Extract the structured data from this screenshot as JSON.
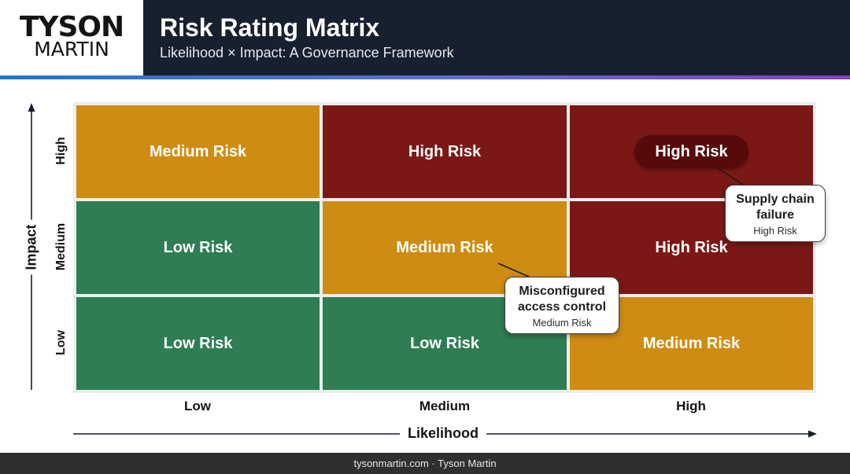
{
  "header": {
    "logo_line1": "TYSON",
    "logo_line2": "MARTIN",
    "title": "Risk Rating Matrix",
    "subtitle": "Likelihood × Impact: A Governance Framework"
  },
  "matrix": {
    "x_axis_title": "Likelihood",
    "y_axis_title": "Impact",
    "x_levels": [
      "Low",
      "Medium",
      "High"
    ],
    "y_levels": [
      "High",
      "Medium",
      "Low"
    ],
    "rows": [
      [
        "Medium Risk",
        "High Risk",
        "High Risk"
      ],
      [
        "Low Risk",
        "Medium Risk",
        "High Risk"
      ],
      [
        "Low Risk",
        "Low Risk",
        "Medium Risk"
      ]
    ],
    "colors": {
      "low": "#2e7d53",
      "medium": "#cf8c12",
      "high": "#7b1816",
      "highlight_pill": "#560a0a"
    }
  },
  "callouts": [
    {
      "title_line1": "Supply chain",
      "title_line2": "failure",
      "rating": "High Risk"
    },
    {
      "title_line1": "Misconfigured",
      "title_line2": "access control",
      "rating": "Medium Risk"
    }
  ],
  "footer": {
    "text": "tysonmartin.com · Tyson Martin"
  }
}
